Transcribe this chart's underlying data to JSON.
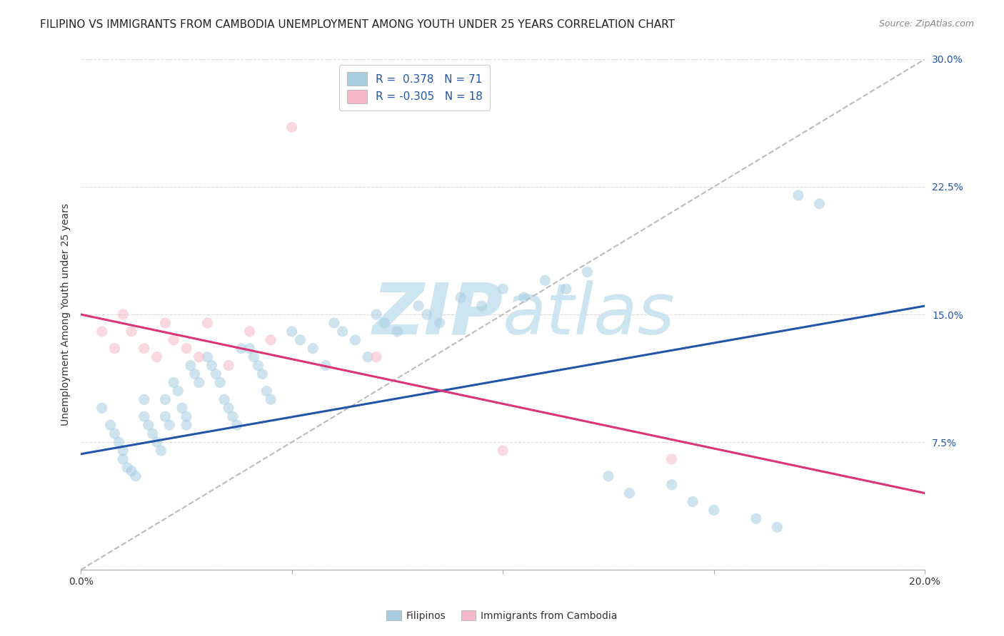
{
  "title": "FILIPINO VS IMMIGRANTS FROM CAMBODIA UNEMPLOYMENT AMONG YOUTH UNDER 25 YEARS CORRELATION CHART",
  "source": "Source: ZipAtlas.com",
  "ylabel": "Unemployment Among Youth under 25 years",
  "xlim": [
    0.0,
    0.2
  ],
  "ylim": [
    0.0,
    0.3
  ],
  "xticks": [
    0.0,
    0.05,
    0.1,
    0.15,
    0.2
  ],
  "yticks": [
    0.0,
    0.075,
    0.15,
    0.225,
    0.3
  ],
  "xtick_labels": [
    "0.0%",
    "",
    "",
    "",
    "20.0%"
  ],
  "ytick_labels": [
    "",
    "7.5%",
    "15.0%",
    "22.5%",
    "30.0%"
  ],
  "blue_scatter_color": "#a8cce0",
  "pink_scatter_color": "#f5b8c8",
  "blue_line_color": "#2255aa",
  "pink_line_color": "#dd3377",
  "dashed_line_color": "#bbbbbb",
  "watermark_color": "#cce5f0",
  "legend_R_blue": "0.378",
  "legend_N_blue": "71",
  "legend_R_pink": "-0.305",
  "legend_N_pink": "18",
  "blue_x": [
    0.005,
    0.007,
    0.008,
    0.009,
    0.01,
    0.01,
    0.011,
    0.012,
    0.013,
    0.015,
    0.015,
    0.016,
    0.017,
    0.018,
    0.019,
    0.02,
    0.02,
    0.021,
    0.022,
    0.023,
    0.024,
    0.025,
    0.025,
    0.026,
    0.027,
    0.028,
    0.03,
    0.031,
    0.032,
    0.033,
    0.034,
    0.035,
    0.036,
    0.037,
    0.038,
    0.04,
    0.041,
    0.042,
    0.043,
    0.044,
    0.045,
    0.05,
    0.052,
    0.055,
    0.058,
    0.06,
    0.062,
    0.065,
    0.068,
    0.07,
    0.072,
    0.075,
    0.08,
    0.082,
    0.085,
    0.09,
    0.095,
    0.1,
    0.105,
    0.11,
    0.115,
    0.12,
    0.125,
    0.13,
    0.14,
    0.145,
    0.15,
    0.16,
    0.165,
    0.17,
    0.175
  ],
  "blue_y": [
    0.095,
    0.085,
    0.08,
    0.075,
    0.07,
    0.065,
    0.06,
    0.058,
    0.055,
    0.1,
    0.09,
    0.085,
    0.08,
    0.075,
    0.07,
    0.1,
    0.09,
    0.085,
    0.11,
    0.105,
    0.095,
    0.09,
    0.085,
    0.12,
    0.115,
    0.11,
    0.125,
    0.12,
    0.115,
    0.11,
    0.1,
    0.095,
    0.09,
    0.085,
    0.13,
    0.13,
    0.125,
    0.12,
    0.115,
    0.105,
    0.1,
    0.14,
    0.135,
    0.13,
    0.12,
    0.145,
    0.14,
    0.135,
    0.125,
    0.15,
    0.145,
    0.14,
    0.155,
    0.15,
    0.145,
    0.16,
    0.155,
    0.165,
    0.16,
    0.17,
    0.165,
    0.175,
    0.055,
    0.045,
    0.05,
    0.04,
    0.035,
    0.03,
    0.025,
    0.22,
    0.215
  ],
  "pink_x": [
    0.005,
    0.008,
    0.01,
    0.012,
    0.015,
    0.018,
    0.02,
    0.022,
    0.025,
    0.028,
    0.03,
    0.035,
    0.04,
    0.045,
    0.05,
    0.07,
    0.1,
    0.14
  ],
  "pink_y": [
    0.14,
    0.13,
    0.15,
    0.14,
    0.13,
    0.125,
    0.145,
    0.135,
    0.13,
    0.125,
    0.145,
    0.12,
    0.14,
    0.135,
    0.26,
    0.125,
    0.07,
    0.065
  ],
  "blue_trend_x": [
    0.0,
    0.2
  ],
  "blue_trend_y": [
    0.068,
    0.155
  ],
  "pink_trend_x": [
    0.0,
    0.2
  ],
  "pink_trend_y": [
    0.15,
    0.045
  ],
  "ref_line_x": [
    0.0,
    0.2
  ],
  "ref_line_y": [
    0.0,
    0.3
  ],
  "title_fontsize": 11,
  "axis_label_fontsize": 10,
  "tick_fontsize": 10,
  "source_fontsize": 9,
  "legend_fontsize": 11,
  "scatter_size": 120,
  "scatter_alpha": 0.55,
  "background_color": "#ffffff",
  "grid_color": "#cccccc",
  "grid_alpha": 0.7
}
